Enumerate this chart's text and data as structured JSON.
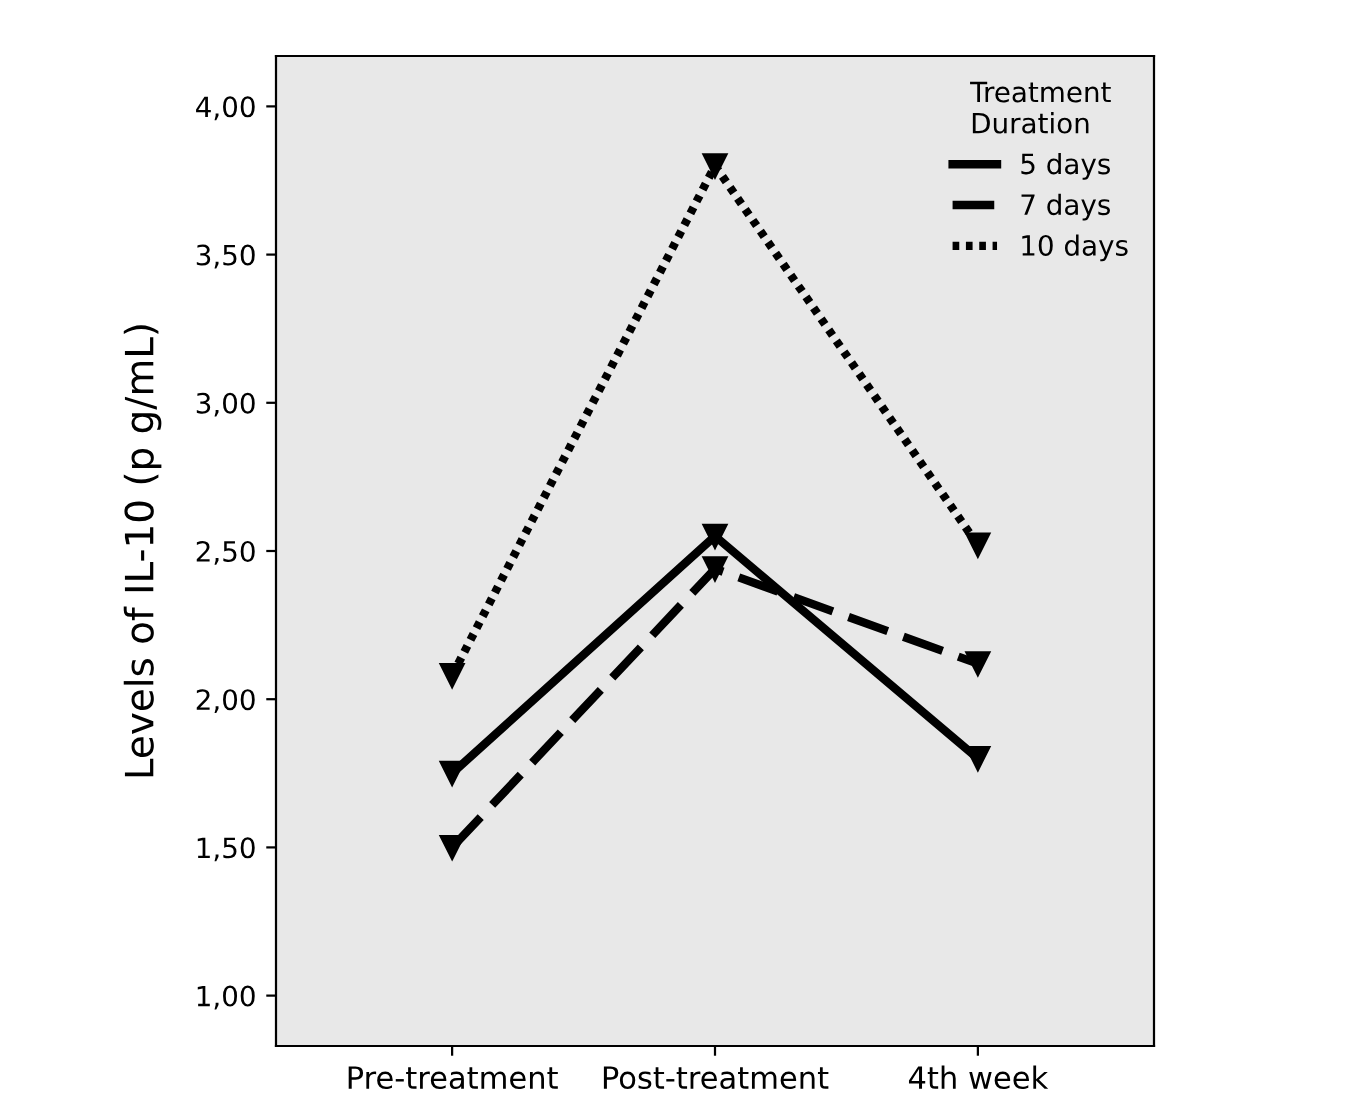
{
  "chart_data": {
    "type": "line",
    "ylabel": "Levels of IL-10 (p g/mL)",
    "legend_title": "Treatment\nDuration",
    "categories": [
      "Pre-treatment",
      "Post-treatment",
      "4th week"
    ],
    "series": [
      {
        "name": "5 days",
        "color": "#000000",
        "line_style": "solid",
        "values": [
          1.75,
          2.55,
          1.8
        ]
      },
      {
        "name": "7 days",
        "color": "#000000",
        "line_style": "dashed",
        "values": [
          1.5,
          2.44,
          2.12
        ]
      },
      {
        "name": "10 days",
        "color": "#000000",
        "line_style": "dotted",
        "values": [
          2.08,
          3.8,
          2.52
        ]
      }
    ],
    "marker": "triangle",
    "ylim": [
      0.83,
      4.17
    ],
    "yticks": [
      {
        "value": 1.0,
        "label": "1,00"
      },
      {
        "value": 1.5,
        "label": "1,50"
      },
      {
        "value": 2.0,
        "label": "2,00"
      },
      {
        "value": 2.5,
        "label": "2,50"
      },
      {
        "value": 3.0,
        "label": "3,00"
      },
      {
        "value": 3.5,
        "label": "3,50"
      },
      {
        "value": 4.0,
        "label": "4,00"
      }
    ],
    "grid": false,
    "legend": "top right"
  }
}
